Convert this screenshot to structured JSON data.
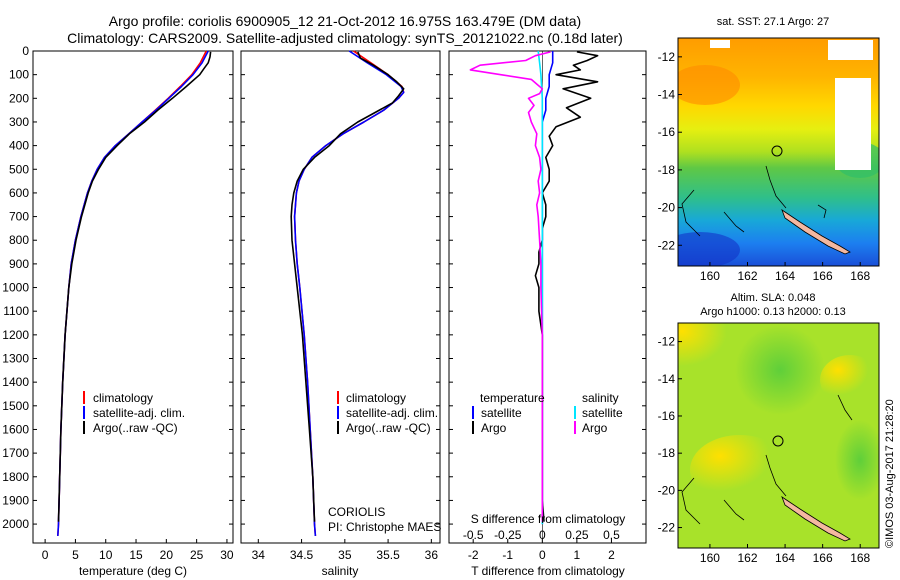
{
  "title": {
    "line1": "Argo profile: coriolis 6900905_12 21-Oct-2012 16.975S 163.479E (DM data)",
    "line2": "Climatology: CARS2009. Satellite-adjusted climatology: synTS_20121022.nc (0.18d later)"
  },
  "depth_ticks": [
    "0",
    "100",
    "200",
    "300",
    "400",
    "500",
    "600",
    "700",
    "800",
    "900",
    "1000",
    "1100",
    "1200",
    "1300",
    "1400",
    "1500",
    "1600",
    "1700",
    "1800",
    "1900",
    "2000"
  ],
  "legend_profiles": {
    "climatology": "climatology",
    "satellite": "satellite-adj. clim.",
    "argo": "Argo(..raw -QC)"
  },
  "legend_diff": {
    "temperature_header": "temperature",
    "salinity_header": "salinity",
    "satellite": "satellite",
    "argo": "Argo"
  },
  "credit": {
    "center": "CORIOLIS",
    "pi": "PI: Christophe MAES"
  },
  "colors": {
    "climatology": "#ff0000",
    "satellite_t": "#0000ff",
    "argo_t": "#000000",
    "satellite_s": "#00e5ff",
    "argo_s": "#ff00ff"
  },
  "maps": {
    "sst": {
      "title": "sat. SST: 27.1 Argo: 27"
    },
    "sla": {
      "title1": "Altim. SLA: 0.048",
      "title2": "Argo h1000: 0.13 h2000: 0.13"
    },
    "lat_ticks": [
      "-12",
      "-14",
      "-16",
      "-18",
      "-20",
      "-22"
    ],
    "lon_ticks": [
      "160",
      "162",
      "164",
      "166",
      "168"
    ],
    "float_lon": 163.479,
    "float_lat": -16.975
  },
  "footer": "©IMOS 03-Aug-2017 21:28:20",
  "chart_data": [
    {
      "type": "line",
      "name": "temperature",
      "xlabel": "temperature (deg C)",
      "ylabel": "",
      "xlim": [
        -2,
        31
      ],
      "ylim": [
        2080,
        0
      ],
      "xticks": [
        "0",
        "5",
        "10",
        "15",
        "20",
        "25",
        "30"
      ],
      "xtick_values": [
        0,
        5,
        10,
        15,
        20,
        25,
        30
      ],
      "series": [
        {
          "name": "climatology",
          "depth": [
            0,
            50,
            100,
            150,
            200,
            250,
            300,
            350,
            400,
            450,
            500,
            550,
            600,
            700,
            800,
            900,
            1000,
            1200,
            1400,
            1600,
            1800,
            2000,
            2050
          ],
          "values": [
            26.6,
            25.6,
            24.2,
            22.3,
            20.3,
            18.2,
            16.0,
            13.8,
            11.6,
            9.8,
            8.6,
            7.7,
            7.0,
            5.9,
            5.0,
            4.3,
            3.9,
            3.3,
            2.9,
            2.6,
            2.4,
            2.2,
            2.1
          ]
        },
        {
          "name": "satellite-adj. clim.",
          "depth": [
            0,
            50,
            100,
            150,
            200,
            250,
            300,
            350,
            400,
            450,
            500,
            550,
            600,
            700,
            800,
            900,
            1000,
            1200,
            1400,
            1600,
            1800,
            2000,
            2050
          ],
          "values": [
            26.9,
            25.9,
            24.4,
            22.5,
            20.4,
            18.3,
            16.0,
            13.8,
            11.6,
            9.8,
            8.6,
            7.7,
            7.0,
            5.9,
            5.0,
            4.3,
            3.9,
            3.3,
            2.9,
            2.6,
            2.4,
            2.2,
            2.1
          ]
        },
        {
          "name": "Argo(..raw -QC)",
          "depth": [
            4,
            25,
            50,
            75,
            100,
            150,
            200,
            250,
            300,
            350,
            400,
            450,
            500,
            550,
            600,
            700,
            800,
            900,
            1000,
            1200,
            1400,
            1600,
            1800,
            1990
          ],
          "values": [
            27.3,
            27.2,
            26.9,
            26.2,
            25.5,
            23.3,
            21.0,
            18.6,
            16.4,
            13.9,
            11.9,
            10.0,
            8.8,
            7.8,
            7.1,
            6.0,
            5.1,
            4.4,
            3.9,
            3.3,
            2.9,
            2.6,
            2.4,
            2.2
          ]
        }
      ]
    },
    {
      "type": "line",
      "name": "salinity",
      "xlabel": "salinity",
      "ylabel": "",
      "xlim": [
        33.8,
        36.1
      ],
      "ylim": [
        2080,
        0
      ],
      "xticks": [
        "34",
        "34.5",
        "35",
        "35.5",
        "36"
      ],
      "xtick_values": [
        34,
        34.5,
        35,
        35.5,
        36
      ],
      "series": [
        {
          "name": "climatology",
          "depth": [
            0,
            50,
            100,
            150,
            175,
            200,
            250,
            300,
            350,
            400,
            450,
            500,
            550,
            600,
            700,
            800,
            900,
            1000,
            1200,
            1400,
            1600,
            1800,
            2000,
            2050
          ],
          "values": [
            35.1,
            35.3,
            35.5,
            35.66,
            35.68,
            35.62,
            35.45,
            35.22,
            34.98,
            34.78,
            34.62,
            34.53,
            34.47,
            34.44,
            34.42,
            34.43,
            34.45,
            34.48,
            34.53,
            34.57,
            34.6,
            34.63,
            34.65,
            34.66
          ]
        },
        {
          "name": "satellite-adj. clim.",
          "depth": [
            0,
            50,
            100,
            150,
            175,
            200,
            250,
            300,
            350,
            400,
            450,
            500,
            550,
            600,
            700,
            800,
            900,
            1000,
            1200,
            1400,
            1600,
            1800,
            2000,
            2050
          ],
          "values": [
            35.05,
            35.26,
            35.48,
            35.65,
            35.68,
            35.62,
            35.45,
            35.22,
            34.98,
            34.78,
            34.62,
            34.53,
            34.47,
            34.44,
            34.42,
            34.43,
            34.45,
            34.48,
            34.53,
            34.57,
            34.6,
            34.63,
            34.65,
            34.66
          ]
        },
        {
          "name": "Argo(..raw -QC)",
          "depth": [
            4,
            30,
            60,
            100,
            130,
            160,
            190,
            220,
            260,
            300,
            350,
            400,
            450,
            500,
            550,
            600,
            650,
            700,
            800,
            900,
            1000,
            1200,
            1400,
            1600,
            1800,
            1990
          ],
          "values": [
            35.15,
            35.18,
            35.33,
            35.5,
            35.6,
            35.68,
            35.62,
            35.55,
            35.35,
            35.15,
            34.95,
            34.82,
            34.65,
            34.52,
            34.45,
            34.41,
            34.39,
            34.38,
            34.39,
            34.42,
            34.45,
            34.51,
            34.55,
            34.59,
            34.63,
            34.65
          ]
        }
      ]
    },
    {
      "type": "line",
      "name": "difference",
      "xlabel": "T difference from climatology",
      "xlabel_top": "S difference from climatology",
      "xlim": [
        -2.7,
        3.0
      ],
      "ylim": [
        2080,
        0
      ],
      "xticks": [
        "-2",
        "-1",
        "0",
        "1",
        "2"
      ],
      "xtick_values": [
        -2,
        -1,
        0,
        1,
        2
      ],
      "sticks": [
        "-0.5",
        "-0.25",
        "0",
        "0.25",
        "0.5"
      ],
      "stick_values": [
        -0.5,
        -0.25,
        0,
        0.25,
        0.5
      ],
      "s_scale": 4,
      "series": [
        {
          "name": "T satellite",
          "depth": [
            0,
            50,
            100,
            150,
            200,
            250,
            300,
            400,
            500,
            600,
            800,
            1000,
            1500,
            2000
          ],
          "values": [
            0.3,
            0.3,
            0.2,
            0.2,
            0.1,
            0.1,
            0.0,
            0.0,
            0.0,
            0.0,
            0.0,
            0.0,
            0.0,
            0.0
          ]
        },
        {
          "name": "T Argo",
          "depth": [
            4,
            20,
            40,
            60,
            80,
            100,
            130,
            160,
            200,
            240,
            280,
            320,
            360,
            400,
            450,
            500,
            550,
            600,
            650,
            700,
            750,
            800,
            850,
            900,
            950,
            1000,
            1100,
            1200,
            1300,
            1400,
            1500,
            1600,
            1700,
            1800,
            1900,
            1990
          ],
          "values": [
            1.0,
            1.6,
            1.3,
            0.9,
            1.1,
            0.4,
            1.6,
            0.6,
            1.4,
            0.7,
            1.1,
            0.4,
            0.2,
            0.3,
            0.1,
            0.2,
            0.2,
            0.0,
            0.1,
            0.1,
            0.0,
            0.0,
            -0.1,
            -0.1,
            -0.2,
            -0.1,
            -0.1,
            0.0,
            0.0,
            0.0,
            0.0,
            0.0,
            0.0,
            0.0,
            0.0,
            0.05
          ]
        },
        {
          "name": "S satellite",
          "depth": [
            0,
            50,
            100,
            150,
            200,
            300,
            400,
            500,
            600,
            800,
            1000,
            1500,
            2000
          ],
          "values": [
            -0.03,
            -0.02,
            -0.01,
            -0.005,
            0.0,
            0.0,
            0.0,
            0.0,
            0.0,
            0.0,
            0.0,
            0.0,
            0.0
          ]
        },
        {
          "name": "S Argo",
          "depth": [
            4,
            20,
            40,
            60,
            80,
            100,
            120,
            140,
            160,
            180,
            200,
            230,
            260,
            300,
            350,
            400,
            450,
            500,
            550,
            600,
            650,
            700,
            800,
            900,
            1000,
            1200,
            1500,
            1800,
            1990
          ],
          "values": [
            0.06,
            -0.05,
            -0.12,
            -0.45,
            -0.52,
            -0.3,
            -0.08,
            -0.04,
            0.0,
            -0.02,
            -0.1,
            -0.06,
            -0.1,
            -0.08,
            -0.04,
            -0.05,
            -0.02,
            -0.01,
            -0.03,
            -0.02,
            -0.04,
            -0.03,
            -0.02,
            -0.01,
            -0.01,
            0.0,
            0.0,
            0.0,
            0.0
          ]
        }
      ]
    }
  ]
}
